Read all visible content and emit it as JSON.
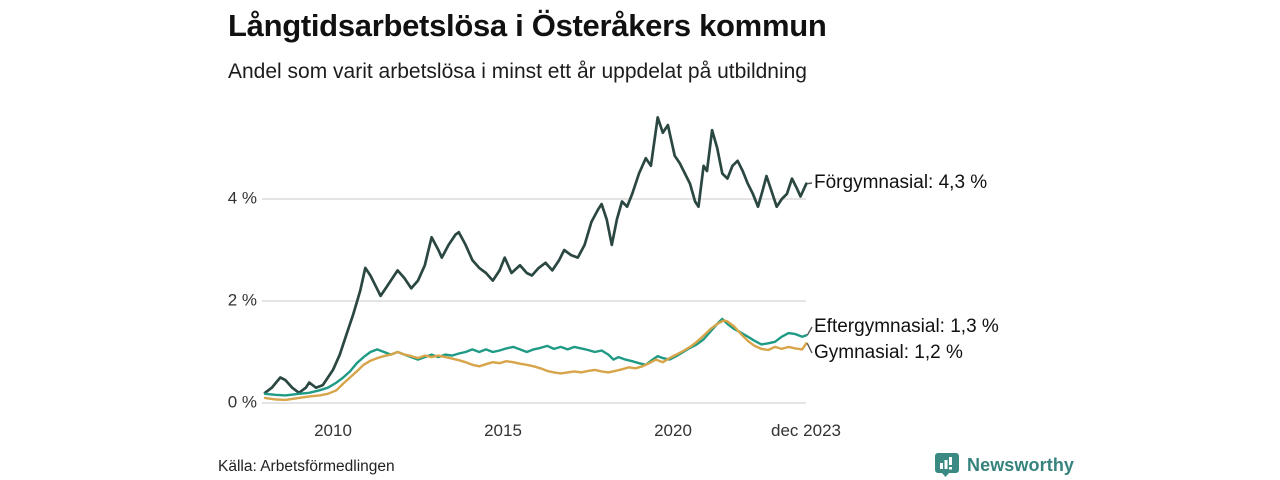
{
  "header": {
    "title": "Långtidsarbetslösa i Österåkers kommun",
    "subtitle": "Andel som varit arbetslösa i minst ett år uppdelat på utbildning"
  },
  "footer": {
    "source": "Källa: Arbetsförmedlingen",
    "brand_name": "Newsworthy",
    "brand_color": "#35837c",
    "logo_color": "#3a8a83"
  },
  "chart_data": {
    "type": "line",
    "title": "Långtidsarbetslösa i Österåkers kommun",
    "subtitle": "Andel som varit arbetslösa i minst ett år uppdelat på utbildning",
    "xlabel": "",
    "ylabel": "",
    "xlim": [
      2007.9,
      2023.95
    ],
    "ylim": [
      0,
      5.75
    ],
    "grid": "horizontal",
    "legend_position": "right-end-labels",
    "grid_color": "#dcdcdc",
    "y_axis": {
      "unit": "%",
      "ticks": [
        {
          "value": 0,
          "label": "0 %"
        },
        {
          "value": 2,
          "label": "2 %"
        },
        {
          "value": 4,
          "label": "4 %"
        }
      ]
    },
    "x_axis": {
      "ticks": [
        {
          "value": 2010,
          "label": "2010"
        },
        {
          "value": 2015,
          "label": "2015"
        },
        {
          "value": 2020,
          "label": "2020"
        },
        {
          "value": 2023.92,
          "label": "dec 2023"
        }
      ]
    },
    "series": [
      {
        "name": "Förgymnasial",
        "end_label": "Förgymnasial: 4,3 %",
        "last_value": "4,3 %",
        "color": "#2b4742",
        "stroke_width": 2.7,
        "points": [
          [
            2008.0,
            0.2
          ],
          [
            2008.2,
            0.3
          ],
          [
            2008.45,
            0.5
          ],
          [
            2008.6,
            0.45
          ],
          [
            2008.8,
            0.3
          ],
          [
            2009.0,
            0.2
          ],
          [
            2009.2,
            0.3
          ],
          [
            2009.3,
            0.4
          ],
          [
            2009.5,
            0.3
          ],
          [
            2009.7,
            0.35
          ],
          [
            2009.85,
            0.5
          ],
          [
            2010.0,
            0.65
          ],
          [
            2010.2,
            0.95
          ],
          [
            2010.4,
            1.35
          ],
          [
            2010.6,
            1.75
          ],
          [
            2010.8,
            2.2
          ],
          [
            2010.95,
            2.65
          ],
          [
            2011.1,
            2.5
          ],
          [
            2011.25,
            2.3
          ],
          [
            2011.4,
            2.1
          ],
          [
            2011.6,
            2.3
          ],
          [
            2011.8,
            2.5
          ],
          [
            2011.9,
            2.6
          ],
          [
            2012.1,
            2.45
          ],
          [
            2012.3,
            2.25
          ],
          [
            2012.5,
            2.4
          ],
          [
            2012.7,
            2.7
          ],
          [
            2012.9,
            3.25
          ],
          [
            2013.1,
            3.0
          ],
          [
            2013.2,
            2.85
          ],
          [
            2013.4,
            3.1
          ],
          [
            2013.6,
            3.3
          ],
          [
            2013.7,
            3.35
          ],
          [
            2013.9,
            3.1
          ],
          [
            2014.1,
            2.8
          ],
          [
            2014.3,
            2.65
          ],
          [
            2014.5,
            2.55
          ],
          [
            2014.7,
            2.4
          ],
          [
            2014.9,
            2.6
          ],
          [
            2015.05,
            2.85
          ],
          [
            2015.25,
            2.55
          ],
          [
            2015.5,
            2.7
          ],
          [
            2015.7,
            2.55
          ],
          [
            2015.85,
            2.5
          ],
          [
            2016.05,
            2.65
          ],
          [
            2016.25,
            2.75
          ],
          [
            2016.45,
            2.6
          ],
          [
            2016.65,
            2.8
          ],
          [
            2016.8,
            3.0
          ],
          [
            2017.0,
            2.9
          ],
          [
            2017.2,
            2.85
          ],
          [
            2017.4,
            3.1
          ],
          [
            2017.6,
            3.55
          ],
          [
            2017.8,
            3.8
          ],
          [
            2017.9,
            3.9
          ],
          [
            2018.05,
            3.6
          ],
          [
            2018.2,
            3.1
          ],
          [
            2018.35,
            3.6
          ],
          [
            2018.5,
            3.95
          ],
          [
            2018.65,
            3.85
          ],
          [
            2018.8,
            4.1
          ],
          [
            2019.0,
            4.5
          ],
          [
            2019.2,
            4.8
          ],
          [
            2019.35,
            4.65
          ],
          [
            2019.55,
            5.6
          ],
          [
            2019.7,
            5.3
          ],
          [
            2019.85,
            5.45
          ],
          [
            2020.05,
            4.85
          ],
          [
            2020.2,
            4.7
          ],
          [
            2020.35,
            4.5
          ],
          [
            2020.5,
            4.3
          ],
          [
            2020.65,
            3.95
          ],
          [
            2020.75,
            3.85
          ],
          [
            2020.9,
            4.65
          ],
          [
            2021.0,
            4.55
          ],
          [
            2021.15,
            5.35
          ],
          [
            2021.3,
            5.0
          ],
          [
            2021.45,
            4.5
          ],
          [
            2021.6,
            4.4
          ],
          [
            2021.75,
            4.65
          ],
          [
            2021.9,
            4.75
          ],
          [
            2022.05,
            4.55
          ],
          [
            2022.2,
            4.3
          ],
          [
            2022.35,
            4.1
          ],
          [
            2022.5,
            3.85
          ],
          [
            2022.65,
            4.2
          ],
          [
            2022.75,
            4.45
          ],
          [
            2022.9,
            4.15
          ],
          [
            2023.05,
            3.85
          ],
          [
            2023.2,
            4.0
          ],
          [
            2023.35,
            4.1
          ],
          [
            2023.5,
            4.4
          ],
          [
            2023.65,
            4.2
          ],
          [
            2023.75,
            4.05
          ],
          [
            2023.92,
            4.3
          ]
        ]
      },
      {
        "name": "Eftergymnasial",
        "end_label": "Eftergymnasial: 1,3 %",
        "last_value": "1,3 %",
        "color": "#1f9a85",
        "stroke_width": 2.4,
        "points": [
          [
            2008.0,
            0.18
          ],
          [
            2008.3,
            0.16
          ],
          [
            2008.6,
            0.15
          ],
          [
            2009.0,
            0.18
          ],
          [
            2009.3,
            0.2
          ],
          [
            2009.6,
            0.25
          ],
          [
            2009.85,
            0.3
          ],
          [
            2010.1,
            0.4
          ],
          [
            2010.3,
            0.5
          ],
          [
            2010.5,
            0.62
          ],
          [
            2010.7,
            0.78
          ],
          [
            2010.9,
            0.9
          ],
          [
            2011.1,
            1.0
          ],
          [
            2011.3,
            1.05
          ],
          [
            2011.5,
            1.0
          ],
          [
            2011.7,
            0.95
          ],
          [
            2011.9,
            1.0
          ],
          [
            2012.1,
            0.95
          ],
          [
            2012.3,
            0.9
          ],
          [
            2012.5,
            0.85
          ],
          [
            2012.7,
            0.9
          ],
          [
            2012.9,
            0.95
          ],
          [
            2013.1,
            0.9
          ],
          [
            2013.3,
            0.95
          ],
          [
            2013.5,
            0.93
          ],
          [
            2013.7,
            0.97
          ],
          [
            2013.9,
            1.0
          ],
          [
            2014.1,
            1.05
          ],
          [
            2014.3,
            1.0
          ],
          [
            2014.5,
            1.05
          ],
          [
            2014.7,
            1.0
          ],
          [
            2014.9,
            1.03
          ],
          [
            2015.1,
            1.07
          ],
          [
            2015.3,
            1.1
          ],
          [
            2015.5,
            1.05
          ],
          [
            2015.7,
            1.0
          ],
          [
            2015.9,
            1.05
          ],
          [
            2016.1,
            1.08
          ],
          [
            2016.3,
            1.12
          ],
          [
            2016.5,
            1.06
          ],
          [
            2016.7,
            1.1
          ],
          [
            2016.9,
            1.05
          ],
          [
            2017.1,
            1.1
          ],
          [
            2017.3,
            1.07
          ],
          [
            2017.5,
            1.04
          ],
          [
            2017.7,
            1.0
          ],
          [
            2017.9,
            1.03
          ],
          [
            2018.1,
            0.95
          ],
          [
            2018.25,
            0.85
          ],
          [
            2018.4,
            0.9
          ],
          [
            2018.6,
            0.85
          ],
          [
            2018.8,
            0.82
          ],
          [
            2019.0,
            0.78
          ],
          [
            2019.2,
            0.75
          ],
          [
            2019.4,
            0.85
          ],
          [
            2019.55,
            0.92
          ],
          [
            2019.7,
            0.88
          ],
          [
            2019.9,
            0.85
          ],
          [
            2020.1,
            0.92
          ],
          [
            2020.3,
            1.0
          ],
          [
            2020.5,
            1.08
          ],
          [
            2020.7,
            1.15
          ],
          [
            2020.9,
            1.25
          ],
          [
            2021.1,
            1.4
          ],
          [
            2021.3,
            1.55
          ],
          [
            2021.45,
            1.65
          ],
          [
            2021.6,
            1.55
          ],
          [
            2021.8,
            1.45
          ],
          [
            2022.0,
            1.38
          ],
          [
            2022.2,
            1.3
          ],
          [
            2022.4,
            1.22
          ],
          [
            2022.6,
            1.15
          ],
          [
            2022.8,
            1.17
          ],
          [
            2023.0,
            1.2
          ],
          [
            2023.2,
            1.3
          ],
          [
            2023.4,
            1.37
          ],
          [
            2023.6,
            1.35
          ],
          [
            2023.8,
            1.3
          ],
          [
            2023.92,
            1.33
          ]
        ]
      },
      {
        "name": "Gymnasial",
        "end_label": "Gymnasial: 1,2 %",
        "last_value": "1,2 %",
        "color": "#d7a449",
        "stroke_width": 2.4,
        "points": [
          [
            2008.0,
            0.1
          ],
          [
            2008.3,
            0.07
          ],
          [
            2008.6,
            0.06
          ],
          [
            2009.0,
            0.1
          ],
          [
            2009.3,
            0.13
          ],
          [
            2009.6,
            0.15
          ],
          [
            2009.85,
            0.18
          ],
          [
            2010.1,
            0.25
          ],
          [
            2010.3,
            0.38
          ],
          [
            2010.5,
            0.5
          ],
          [
            2010.7,
            0.62
          ],
          [
            2010.9,
            0.75
          ],
          [
            2011.1,
            0.83
          ],
          [
            2011.3,
            0.88
          ],
          [
            2011.5,
            0.92
          ],
          [
            2011.7,
            0.95
          ],
          [
            2011.9,
            1.0
          ],
          [
            2012.1,
            0.95
          ],
          [
            2012.3,
            0.92
          ],
          [
            2012.5,
            0.88
          ],
          [
            2012.7,
            0.93
          ],
          [
            2012.9,
            0.9
          ],
          [
            2013.1,
            0.93
          ],
          [
            2013.3,
            0.9
          ],
          [
            2013.5,
            0.87
          ],
          [
            2013.7,
            0.84
          ],
          [
            2013.9,
            0.8
          ],
          [
            2014.1,
            0.75
          ],
          [
            2014.3,
            0.72
          ],
          [
            2014.5,
            0.76
          ],
          [
            2014.7,
            0.8
          ],
          [
            2014.9,
            0.78
          ],
          [
            2015.1,
            0.82
          ],
          [
            2015.3,
            0.8
          ],
          [
            2015.5,
            0.77
          ],
          [
            2015.7,
            0.75
          ],
          [
            2015.9,
            0.72
          ],
          [
            2016.1,
            0.68
          ],
          [
            2016.3,
            0.63
          ],
          [
            2016.5,
            0.6
          ],
          [
            2016.7,
            0.58
          ],
          [
            2016.9,
            0.6
          ],
          [
            2017.1,
            0.62
          ],
          [
            2017.3,
            0.6
          ],
          [
            2017.5,
            0.63
          ],
          [
            2017.7,
            0.65
          ],
          [
            2017.9,
            0.62
          ],
          [
            2018.1,
            0.6
          ],
          [
            2018.3,
            0.63
          ],
          [
            2018.5,
            0.66
          ],
          [
            2018.7,
            0.7
          ],
          [
            2018.9,
            0.68
          ],
          [
            2019.1,
            0.72
          ],
          [
            2019.3,
            0.78
          ],
          [
            2019.5,
            0.85
          ],
          [
            2019.7,
            0.8
          ],
          [
            2019.9,
            0.88
          ],
          [
            2020.1,
            0.95
          ],
          [
            2020.3,
            1.02
          ],
          [
            2020.5,
            1.1
          ],
          [
            2020.7,
            1.2
          ],
          [
            2020.9,
            1.32
          ],
          [
            2021.1,
            1.45
          ],
          [
            2021.3,
            1.55
          ],
          [
            2021.5,
            1.62
          ],
          [
            2021.6,
            1.6
          ],
          [
            2021.8,
            1.5
          ],
          [
            2022.0,
            1.35
          ],
          [
            2022.2,
            1.22
          ],
          [
            2022.4,
            1.12
          ],
          [
            2022.6,
            1.06
          ],
          [
            2022.8,
            1.04
          ],
          [
            2023.0,
            1.1
          ],
          [
            2023.2,
            1.06
          ],
          [
            2023.4,
            1.1
          ],
          [
            2023.6,
            1.07
          ],
          [
            2023.8,
            1.05
          ],
          [
            2023.92,
            1.17
          ]
        ]
      }
    ]
  }
}
